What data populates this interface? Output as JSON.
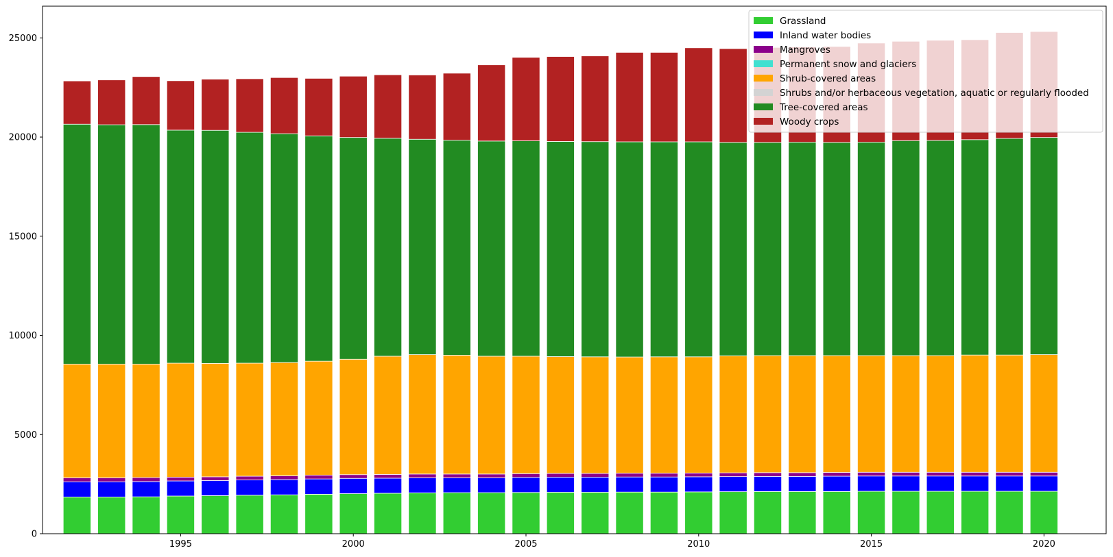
{
  "chart_data": {
    "type": "bar",
    "stacked": true,
    "title": "",
    "xlabel": "",
    "ylabel": "",
    "xlim": [
      1991.0,
      2021.8
    ],
    "ylim": [
      0,
      26600
    ],
    "grid": false,
    "legend_position": "top-right",
    "x": [
      1992,
      1993,
      1994,
      1995,
      1996,
      1997,
      1998,
      1999,
      2000,
      2001,
      2002,
      2003,
      2004,
      2005,
      2006,
      2007,
      2008,
      2009,
      2010,
      2011,
      2012,
      2013,
      2014,
      2015,
      2016,
      2017,
      2018,
      2019,
      2020
    ],
    "x_ticks": [
      1995,
      2000,
      2005,
      2010,
      2015,
      2020
    ],
    "y_ticks": [
      0,
      5000,
      10000,
      15000,
      20000,
      25000
    ],
    "series": [
      {
        "name": "Grassland",
        "color": "#32cd32",
        "values": [
          1850,
          1850,
          1860,
          1900,
          1920,
          1940,
          1960,
          1990,
          2020,
          2040,
          2060,
          2070,
          2070,
          2080,
          2090,
          2090,
          2100,
          2100,
          2110,
          2120,
          2130,
          2130,
          2130,
          2140,
          2140,
          2140,
          2140,
          2140,
          2140
        ]
      },
      {
        "name": "Inland water bodies",
        "color": "#0000ff",
        "values": [
          770,
          770,
          770,
          760,
          760,
          770,
          770,
          770,
          770,
          760,
          760,
          750,
          750,
          760,
          760,
          760,
          760,
          760,
          760,
          760,
          760,
          760,
          770,
          770,
          770,
          770,
          770,
          770,
          770
        ]
      },
      {
        "name": "Mangroves",
        "color": "#8b008b",
        "values": [
          200,
          200,
          200,
          190,
          190,
          190,
          190,
          190,
          190,
          190,
          190,
          190,
          190,
          190,
          190,
          190,
          190,
          190,
          190,
          190,
          190,
          190,
          190,
          190,
          190,
          190,
          190,
          190,
          190
        ]
      },
      {
        "name": "Permanent snow and glaciers",
        "color": "#40e0d0",
        "values": [
          0,
          0,
          0,
          0,
          0,
          0,
          0,
          0,
          0,
          0,
          0,
          0,
          0,
          0,
          0,
          0,
          0,
          0,
          0,
          0,
          0,
          0,
          0,
          0,
          0,
          0,
          0,
          0,
          0
        ]
      },
      {
        "name": "Shrub-covered areas",
        "color": "#ffa500",
        "values": [
          5730,
          5730,
          5720,
          5750,
          5720,
          5700,
          5710,
          5750,
          5820,
          5960,
          6020,
          5990,
          5940,
          5920,
          5890,
          5880,
          5860,
          5870,
          5860,
          5900,
          5900,
          5900,
          5890,
          5880,
          5880,
          5880,
          5910,
          5910,
          5930
        ]
      },
      {
        "name": "Shrubs and/or herbaceous vegetation, aquatic or regularly flooded",
        "color": "#d3d3d3",
        "values": [
          0,
          0,
          0,
          0,
          0,
          0,
          0,
          0,
          0,
          0,
          0,
          0,
          0,
          0,
          0,
          0,
          0,
          0,
          0,
          0,
          0,
          0,
          0,
          0,
          0,
          0,
          0,
          0,
          0
        ]
      },
      {
        "name": "Tree-covered areas",
        "color": "#228b22",
        "values": [
          12100,
          12070,
          12080,
          11750,
          11750,
          11640,
          11540,
          11360,
          11180,
          10990,
          10860,
          10840,
          10850,
          10860,
          10850,
          10850,
          10850,
          10840,
          10840,
          10760,
          10750,
          10760,
          10750,
          10760,
          10840,
          10850,
          10860,
          10920,
          10950
        ]
      },
      {
        "name": "Woody crops",
        "color": "#b22222",
        "values": [
          2180,
          2260,
          2420,
          2490,
          2580,
          2700,
          2830,
          2900,
          3090,
          3200,
          3240,
          3380,
          3840,
          4210,
          4280,
          4320,
          4510,
          4510,
          4740,
          4730,
          4790,
          4810,
          4840,
          5000,
          5010,
          5050,
          5040,
          5340,
          5340
        ]
      }
    ]
  }
}
